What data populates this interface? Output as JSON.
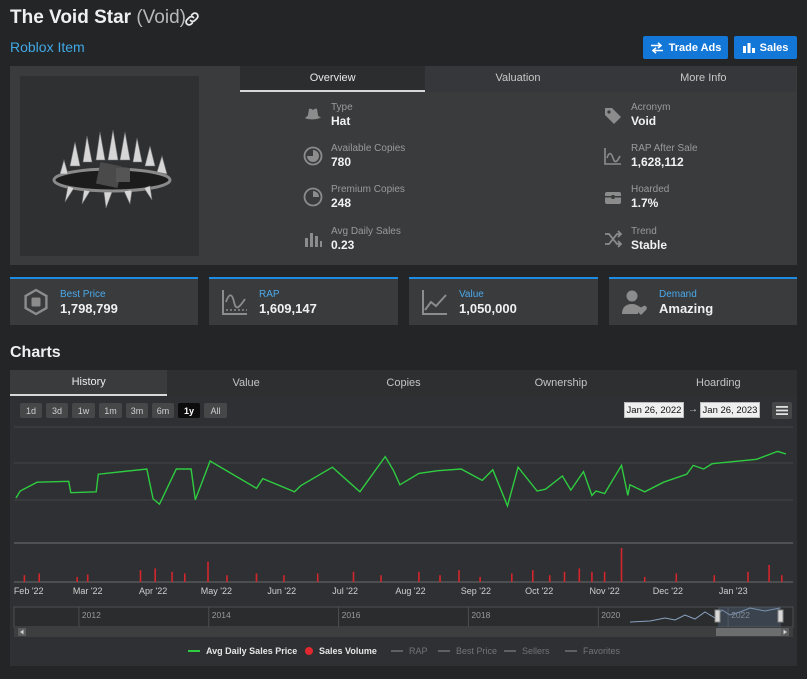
{
  "header": {
    "name": "The Void Star",
    "acronym_paren": "(Void)",
    "category": "Roblox Item",
    "trade_ads_label": "Trade Ads",
    "sales_label": "Sales"
  },
  "info_tabs": [
    "Overview",
    "Valuation",
    "More Info"
  ],
  "stats_left": [
    {
      "label": "Type",
      "value": "Hat",
      "icon": "fedora-hat-icon"
    },
    {
      "label": "Available Copies",
      "value": "780",
      "icon": "pie-chart-icon"
    },
    {
      "label": "Premium Copies",
      "value": "248",
      "icon": "premium-pie-icon"
    },
    {
      "label": "Avg Daily Sales",
      "value": "0.23",
      "icon": "bar-chart-icon"
    }
  ],
  "stats_right": [
    {
      "label": "Acronym",
      "value": "Void",
      "icon": "tag-icon"
    },
    {
      "label": "RAP After Sale",
      "value": "1,628,112",
      "icon": "line-graph-icon"
    },
    {
      "label": "Hoarded",
      "value": "1.7%",
      "icon": "treasure-chest-icon"
    },
    {
      "label": "Trend",
      "value": "Stable",
      "icon": "shuffle-icon"
    }
  ],
  "cards": [
    {
      "label": "Best Price",
      "value": "1,798,799",
      "icon": "robux-icon"
    },
    {
      "label": "RAP",
      "value": "1,609,147",
      "icon": "rap-graph-icon"
    },
    {
      "label": "Value",
      "value": "1,050,000",
      "icon": "value-graph-icon"
    },
    {
      "label": "Demand",
      "value": "Amazing",
      "icon": "user-heart-icon"
    }
  ],
  "charts": {
    "heading": "Charts",
    "tabs": [
      "History",
      "Value",
      "Copies",
      "Ownership",
      "Hoarding"
    ],
    "ranges": [
      "1d",
      "3d",
      "1w",
      "1m",
      "3m",
      "6m",
      "1y",
      "All"
    ],
    "active_range": "1y",
    "date_from": "Jan 26, 2022",
    "date_arrow": "→",
    "date_to": "Jan 26, 2023",
    "x_ticks": [
      "Feb '22",
      "Mar '22",
      "Apr '22",
      "May '22",
      "Jun '22",
      "Jul '22",
      "Aug '22",
      "Sep '22",
      "Oct '22",
      "Nov '22",
      "Dec '22",
      "Jan '23"
    ],
    "navigator_years": [
      "2012",
      "2014",
      "2016",
      "2018",
      "2020",
      "2022"
    ],
    "legend": [
      {
        "name": "Avg Daily Sales Price",
        "color": "#2ecc40",
        "active": true,
        "marker": "line"
      },
      {
        "name": "Sales Volume",
        "color": "#e0282e",
        "active": true,
        "marker": "dot"
      },
      {
        "name": "RAP",
        "color": "#666666",
        "active": false,
        "marker": "line"
      },
      {
        "name": "Best Price",
        "color": "#666666",
        "active": false,
        "marker": "line"
      },
      {
        "name": "Sellers",
        "color": "#666666",
        "active": false,
        "marker": "line"
      },
      {
        "name": "Favorites",
        "color": "#666666",
        "active": false,
        "marker": "line"
      }
    ]
  },
  "chart_data": {
    "type": "line",
    "x_start": "2022-01-26",
    "x_end": "2023-01-26",
    "price_series_name": "Avg Daily Sales Price",
    "price_points": [
      [
        "2022-01-26",
        0.25
      ],
      [
        "2022-01-28",
        0.33
      ],
      [
        "2022-02-05",
        0.43
      ],
      [
        "2022-02-20",
        0.44
      ],
      [
        "2022-02-21",
        0.31
      ],
      [
        "2022-03-05",
        0.32
      ],
      [
        "2022-03-06",
        0.52
      ],
      [
        "2022-03-29",
        0.58
      ],
      [
        "2022-04-01",
        0.24
      ],
      [
        "2022-04-04",
        0.18
      ],
      [
        "2022-04-12",
        0.58
      ],
      [
        "2022-04-19",
        0.58
      ],
      [
        "2022-04-21",
        0.23
      ],
      [
        "2022-04-28",
        0.67
      ],
      [
        "2022-05-20",
        0.36
      ],
      [
        "2022-05-23",
        0.47
      ],
      [
        "2022-06-07",
        0.32
      ],
      [
        "2022-06-10",
        0.39
      ],
      [
        "2022-06-25",
        0.6
      ],
      [
        "2022-07-08",
        0.32
      ],
      [
        "2022-07-20",
        0.72
      ],
      [
        "2022-07-24",
        0.56
      ],
      [
        "2022-07-27",
        0.4
      ],
      [
        "2022-08-05",
        0.53
      ],
      [
        "2022-08-14",
        0.56
      ],
      [
        "2022-08-25",
        0.58
      ],
      [
        "2022-09-04",
        0.45
      ],
      [
        "2022-09-09",
        0.57
      ],
      [
        "2022-09-16",
        0.16
      ],
      [
        "2022-09-21",
        0.6
      ],
      [
        "2022-09-30",
        0.33
      ],
      [
        "2022-10-04",
        0.35
      ],
      [
        "2022-10-12",
        0.5
      ],
      [
        "2022-10-16",
        0.34
      ],
      [
        "2022-10-22",
        0.55
      ],
      [
        "2022-10-26",
        0.28
      ],
      [
        "2022-10-28",
        0.33
      ],
      [
        "2022-11-01",
        0.3
      ],
      [
        "2022-11-09",
        0.62
      ],
      [
        "2022-11-12",
        0.28
      ],
      [
        "2022-11-13",
        0.4
      ],
      [
        "2022-11-20",
        0.32
      ],
      [
        "2022-11-29",
        0.43
      ],
      [
        "2022-12-10",
        0.52
      ],
      [
        "2022-12-13",
        0.62
      ],
      [
        "2022-12-18",
        0.58
      ],
      [
        "2022-12-22",
        0.64
      ],
      [
        "2023-01-12",
        0.69
      ],
      [
        "2023-01-22",
        0.78
      ],
      [
        "2023-01-26",
        0.75
      ]
    ],
    "volume_series_name": "Sales Volume",
    "volume_bars": [
      [
        "2022-01-30",
        0.2
      ],
      [
        "2022-02-06",
        0.25
      ],
      [
        "2022-02-24",
        0.15
      ],
      [
        "2022-03-01",
        0.22
      ],
      [
        "2022-03-26",
        0.35
      ],
      [
        "2022-04-02",
        0.4
      ],
      [
        "2022-04-10",
        0.3
      ],
      [
        "2022-04-16",
        0.25
      ],
      [
        "2022-04-27",
        0.6
      ],
      [
        "2022-05-06",
        0.2
      ],
      [
        "2022-05-20",
        0.25
      ],
      [
        "2022-06-02",
        0.2
      ],
      [
        "2022-06-18",
        0.25
      ],
      [
        "2022-07-05",
        0.3
      ],
      [
        "2022-07-18",
        0.2
      ],
      [
        "2022-08-05",
        0.3
      ],
      [
        "2022-08-15",
        0.2
      ],
      [
        "2022-08-24",
        0.35
      ],
      [
        "2022-09-03",
        0.15
      ],
      [
        "2022-09-18",
        0.25
      ],
      [
        "2022-09-28",
        0.35
      ],
      [
        "2022-10-06",
        0.2
      ],
      [
        "2022-10-13",
        0.3
      ],
      [
        "2022-10-20",
        0.4
      ],
      [
        "2022-10-26",
        0.3
      ],
      [
        "2022-11-01",
        0.3
      ],
      [
        "2022-11-09",
        1.0
      ],
      [
        "2022-11-20",
        0.15
      ],
      [
        "2022-12-05",
        0.25
      ],
      [
        "2022-12-23",
        0.2
      ],
      [
        "2023-01-08",
        0.3
      ],
      [
        "2023-01-18",
        0.5
      ],
      [
        "2023-01-24",
        0.2
      ]
    ]
  }
}
